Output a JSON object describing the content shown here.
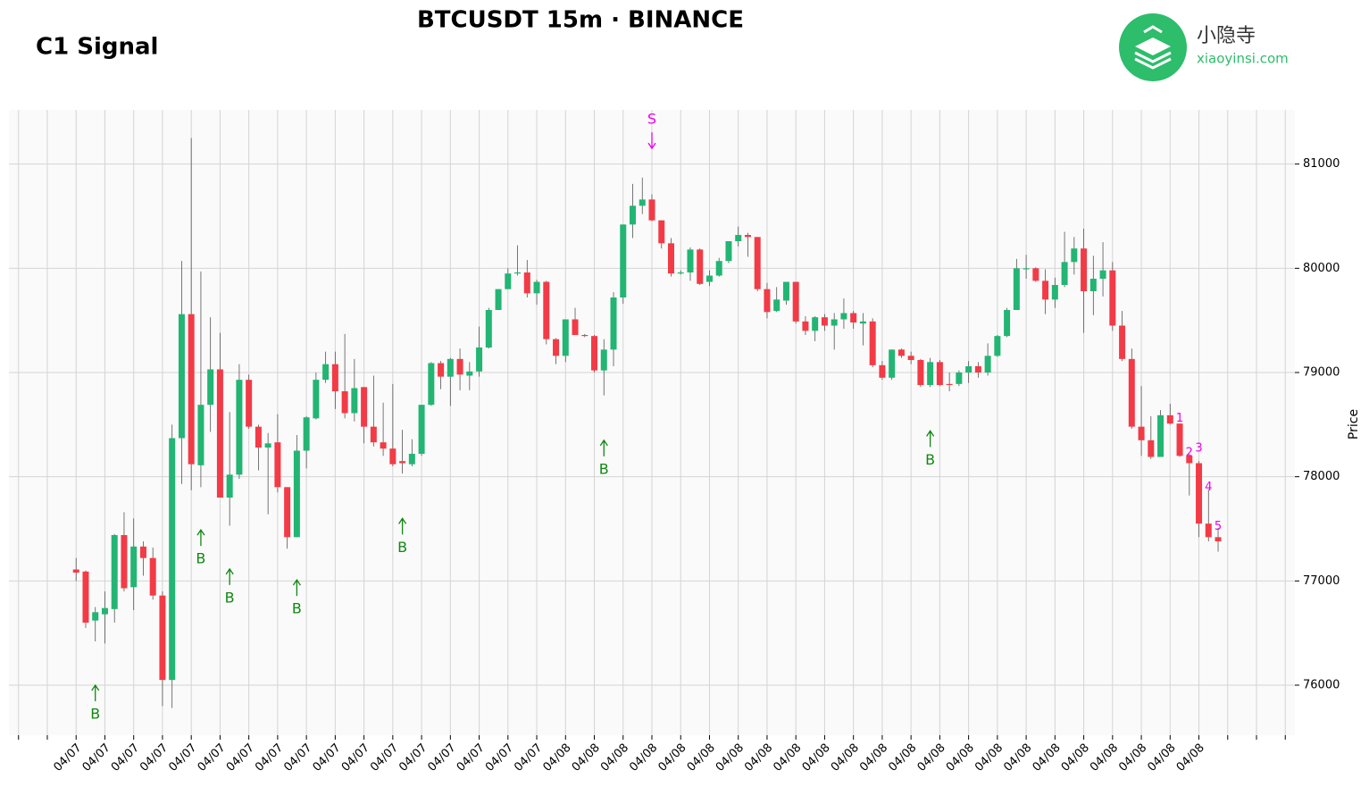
{
  "chart_data": {
    "type": "candlestick",
    "title": "BTCUSDT 15m · BINANCE",
    "subtitle": "C1 Signal",
    "brand": {
      "name": "小隐寺",
      "site": "xiaoyinsi.com"
    },
    "y_label": "Price",
    "categories": [
      "04/07",
      null,
      null,
      "04/07",
      null,
      null,
      "04/07",
      null,
      null,
      "04/07",
      null,
      null,
      "04/07",
      null,
      null,
      "04/07",
      null,
      null,
      "04/07",
      null,
      null,
      "04/07",
      null,
      null,
      "04/07",
      null,
      null,
      "04/07",
      null,
      null,
      "04/07",
      null,
      null,
      "04/07",
      null,
      null,
      "04/07",
      null,
      null,
      "04/07",
      null,
      null,
      "04/07",
      null,
      null,
      "04/07",
      null,
      null,
      "04/07",
      null,
      null,
      "04/08",
      null,
      null,
      "04/08",
      null,
      null,
      "04/08",
      null,
      null,
      "04/08",
      null,
      null,
      "04/08",
      null,
      null,
      "04/08",
      null,
      null,
      "04/08",
      null,
      null,
      "04/08",
      null,
      null,
      "04/08",
      null,
      null,
      "04/08",
      null,
      null,
      "04/08",
      null,
      null,
      "04/08",
      null,
      null,
      "04/08",
      null,
      null,
      "04/08",
      null,
      null,
      "04/08",
      null,
      null,
      "04/08",
      null,
      null,
      "04/08",
      null,
      null,
      "04/08",
      null,
      null,
      "04/08",
      null,
      null,
      "04/08",
      null,
      null,
      "04/08",
      null,
      null,
      "04/08",
      null,
      null,
      "04/08",
      null,
      null
    ],
    "open": [
      77110,
      77090,
      76620,
      76680,
      76730,
      77440,
      76940,
      77330,
      77220,
      76860,
      76050,
      78370,
      79560,
      78110,
      78690,
      79030,
      77800,
      78020,
      78930,
      78480,
      78280,
      78330,
      77900,
      77420,
      78250,
      78560,
      78930,
      79080,
      78820,
      78610,
      78860,
      78480,
      78330,
      78270,
      78150,
      78120,
      78220,
      78690,
      79090,
      78960,
      79130,
      78970,
      79010,
      79240,
      79600,
      79800,
      79950,
      79960,
      79760,
      79870,
      79320,
      79160,
      79510,
      79360,
      79350,
      79020,
      79220,
      79720,
      80420,
      80600,
      80660,
      80460,
      80240,
      79950,
      79960,
      80180,
      79870,
      79930,
      80070,
      80260,
      80320,
      80300,
      79800,
      79590,
      79690,
      79870,
      79490,
      79400,
      79530,
      79450,
      79510,
      79570,
      79470,
      79490,
      79070,
      78950,
      79220,
      79160,
      79120,
      78880,
      79100,
      78890,
      78890,
      79000,
      79060,
      79000,
      79160,
      79350,
      79600,
      79990,
      80000,
      79880,
      79700,
      79840,
      80060,
      80190,
      79780,
      79900,
      79980,
      79450,
      79130,
      78480,
      78350,
      78190,
      78590,
      78510,
      78200,
      78130,
      77550,
      77420
    ],
    "high": [
      77220,
      77100,
      76750,
      76900,
      77450,
      77660,
      77600,
      77380,
      77320,
      76900,
      78500,
      80070,
      81250,
      79970,
      79530,
      79380,
      78620,
      79080,
      78980,
      78500,
      78420,
      78600,
      77900,
      78400,
      78580,
      79000,
      79200,
      79200,
      79370,
      79130,
      78860,
      78970,
      78710,
      78890,
      78450,
      78360,
      78690,
      79100,
      79110,
      79140,
      79230,
      79100,
      79440,
      79620,
      79800,
      80000,
      80220,
      80080,
      79890,
      79880,
      79330,
      79510,
      79620,
      79370,
      79360,
      79320,
      79770,
      80420,
      80810,
      80870,
      80710,
      80460,
      80290,
      79980,
      80200,
      80190,
      79980,
      80100,
      80260,
      80400,
      80340,
      80300,
      79860,
      79820,
      79870,
      79870,
      79540,
      79540,
      79560,
      79570,
      79710,
      79590,
      79570,
      79520,
      79110,
      79220,
      79230,
      79200,
      79130,
      79140,
      79120,
      79000,
      79020,
      79110,
      79100,
      79280,
      79360,
      79620,
      80090,
      80130,
      80010,
      79990,
      79910,
      80350,
      80300,
      80380,
      80120,
      80250,
      80060,
      79590,
      79230,
      78870,
      78580,
      78640,
      78700,
      78510,
      78220,
      78150,
      77880,
      77510
    ],
    "low": [
      77000,
      76550,
      76420,
      76400,
      76600,
      76900,
      76720,
      77050,
      76820,
      75800,
      75780,
      77930,
      77870,
      77900,
      78430,
      77800,
      77530,
      77980,
      78460,
      78060,
      77640,
      77850,
      77310,
      77420,
      78080,
      78550,
      78900,
      78650,
      78560,
      78530,
      78320,
      78290,
      78200,
      78100,
      78030,
      78100,
      78200,
      78680,
      78840,
      78680,
      78830,
      78830,
      78960,
      79230,
      79600,
      79800,
      79930,
      79720,
      79650,
      79270,
      79080,
      79100,
      79360,
      79340,
      79000,
      78780,
      79060,
      79660,
      80290,
      80520,
      80450,
      80190,
      79920,
      79940,
      79880,
      79840,
      79830,
      79920,
      80050,
      80210,
      80110,
      79780,
      79520,
      79580,
      79650,
      79470,
      79360,
      79300,
      79400,
      79220,
      79420,
      79420,
      79260,
      79050,
      78930,
      78930,
      79140,
      79080,
      78860,
      78860,
      78870,
      78820,
      78870,
      78900,
      78950,
      78970,
      79150,
      79340,
      79600,
      79900,
      79870,
      79560,
      79620,
      79820,
      79940,
      79380,
      79550,
      79730,
      79400,
      79110,
      78460,
      78200,
      78170,
      78190,
      78500,
      78190,
      77820,
      77420,
      77380,
      77280
    ],
    "close": [
      77080,
      76600,
      76700,
      76740,
      77440,
      76930,
      77330,
      77220,
      76860,
      76050,
      78370,
      79560,
      78120,
      78690,
      79030,
      77800,
      78020,
      78930,
      78480,
      78280,
      78320,
      77900,
      77420,
      78250,
      78570,
      78930,
      79080,
      78820,
      78610,
      78850,
      78480,
      78330,
      78270,
      78120,
      78130,
      78220,
      78690,
      79090,
      78960,
      79130,
      78980,
      79010,
      79240,
      79600,
      79800,
      79950,
      79960,
      79760,
      79870,
      79320,
      79160,
      79510,
      79360,
      79350,
      79020,
      79220,
      79720,
      80420,
      80600,
      80660,
      80460,
      80240,
      79950,
      79960,
      80180,
      79850,
      79930,
      80070,
      80260,
      80320,
      80300,
      79800,
      79580,
      79700,
      79870,
      79490,
      79400,
      79530,
      79450,
      79510,
      79570,
      79480,
      79490,
      79070,
      78950,
      79220,
      79160,
      79120,
      78880,
      79100,
      78880,
      78880,
      79000,
      79060,
      79000,
      79160,
      79350,
      79600,
      80000,
      80000,
      79880,
      79700,
      79840,
      80060,
      80190,
      79780,
      79900,
      79980,
      79450,
      79130,
      78480,
      78350,
      78190,
      78590,
      78510,
      78200,
      78130,
      77550,
      77420,
      77380
    ],
    "up_color": "#22b573",
    "down_color": "#f23b46",
    "wick_color": "#555555",
    "signal_color": "#118811",
    "sell_color": "#ee00ee",
    "signals": [
      {
        "label": "B",
        "index": 2,
        "price": 76000
      },
      {
        "label": "B",
        "index": 13,
        "price": 77490
      },
      {
        "label": "B",
        "index": 16,
        "price": 77115
      },
      {
        "label": "B",
        "index": 23,
        "price": 77010
      },
      {
        "label": "B",
        "index": 34,
        "price": 77600
      },
      {
        "label": "B",
        "index": 55,
        "price": 78350
      },
      {
        "label": "B",
        "index": 89,
        "price": 78440
      },
      {
        "label": "S",
        "index": 60,
        "price": 81150
      }
    ],
    "count_labels": [
      {
        "label": "1",
        "index": 115,
        "price": 78560
      },
      {
        "label": "2",
        "index": 116,
        "price": 78230
      },
      {
        "label": "3",
        "index": 117,
        "price": 78270
      },
      {
        "label": "4",
        "index": 118,
        "price": 77900
      },
      {
        "label": "5",
        "index": 119,
        "price": 77520
      }
    ],
    "xlim": [
      -7,
      127
    ],
    "xticks": [
      -6,
      -3,
      0,
      3,
      6,
      9,
      12,
      15,
      18,
      21,
      24,
      27,
      30,
      33,
      36,
      39,
      42,
      45,
      48,
      51,
      54,
      57,
      60,
      63,
      66,
      69,
      72,
      75,
      78,
      81,
      84,
      87,
      90,
      93,
      96,
      99,
      102,
      105,
      108,
      111,
      114,
      117,
      120,
      123,
      126
    ],
    "ylim": [
      75520,
      81520
    ],
    "yticks": [
      76000,
      77000,
      78000,
      79000,
      80000,
      81000
    ],
    "grid": true
  }
}
